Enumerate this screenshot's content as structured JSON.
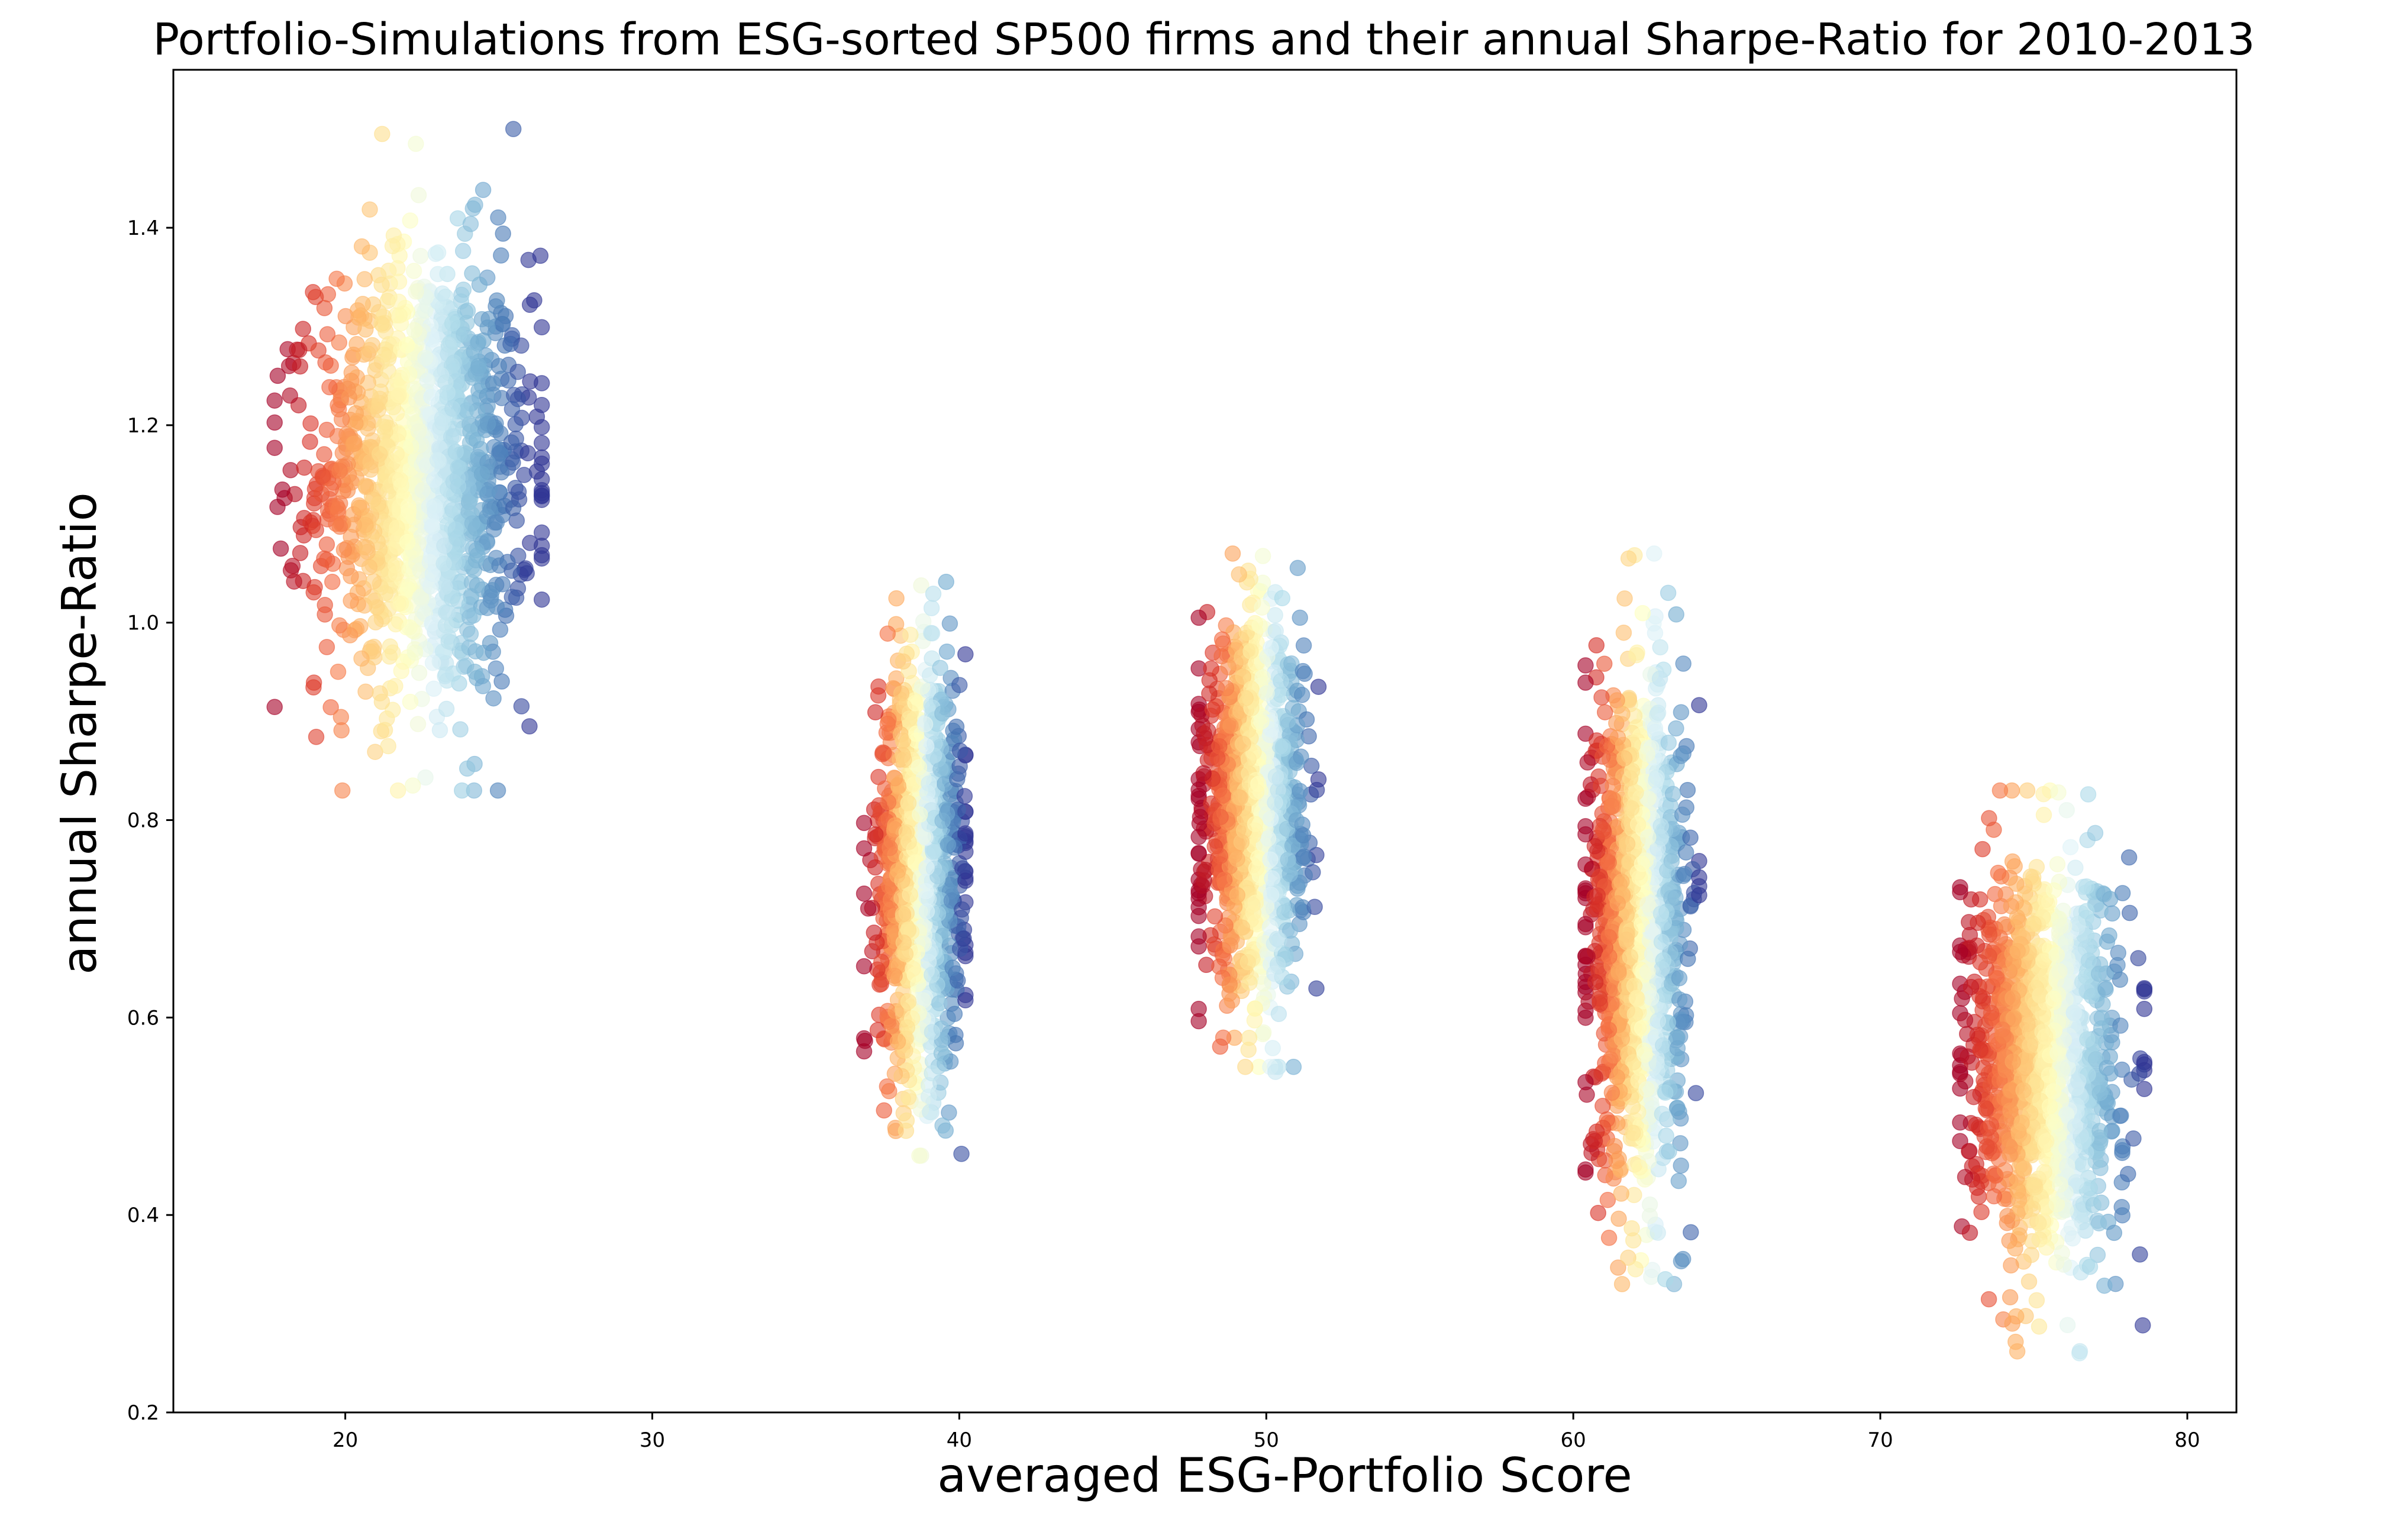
{
  "chart_data": {
    "type": "scatter",
    "title": "Portfolio-Simulations from ESG-sorted SP500 firms and their annual Sharpe-Ratio for 2010-2013",
    "xlabel": "averaged ESG-Portfolio Score",
    "ylabel": "annual Sharpe-Ratio",
    "xlim": [
      14.4,
      81.6
    ],
    "ylim": [
      0.2,
      1.56
    ],
    "xticks": [
      20,
      30,
      40,
      50,
      60,
      70,
      80
    ],
    "yticks": [
      0.2,
      0.4,
      0.6,
      0.8,
      1.0,
      1.2,
      1.4
    ],
    "xtick_labels": [
      "20",
      "30",
      "40",
      "50",
      "60",
      "70",
      "80"
    ],
    "ytick_labels": [
      "0.2",
      "0.4",
      "0.6",
      "0.8",
      "1.0",
      "1.2",
      "1.4"
    ],
    "colormap": "RdYlBu",
    "color_encoding": "x position within each cluster (red = lower ESG score, blue = higher)",
    "marker_alpha": 0.6,
    "grid": false,
    "legend": "none",
    "clusters": [
      {
        "x_center": 22.6,
        "x_range": [
          17.7,
          26.4
        ],
        "y_center": 1.15,
        "y_range": [
          0.83,
          1.5
        ],
        "color_x_range": [
          18.0,
          26.0
        ]
      },
      {
        "x_center": 38.7,
        "x_range": [
          36.9,
          40.2
        ],
        "y_center": 0.75,
        "y_range": [
          0.46,
          1.06
        ],
        "color_x_range": [
          37.0,
          40.2
        ]
      },
      {
        "x_center": 49.6,
        "x_range": [
          47.8,
          51.7
        ],
        "y_center": 0.81,
        "y_range": [
          0.55,
          1.07
        ],
        "color_x_range": [
          47.8,
          51.7
        ]
      },
      {
        "x_center": 62.1,
        "x_range": [
          60.4,
          64.1
        ],
        "y_center": 0.69,
        "y_range": [
          0.33,
          1.07
        ],
        "color_x_range": [
          60.4,
          64.1
        ]
      },
      {
        "x_center": 75.3,
        "x_range": [
          72.6,
          78.6
        ],
        "y_center": 0.56,
        "y_range": [
          0.26,
          0.83
        ],
        "color_x_range": [
          72.6,
          78.6
        ]
      }
    ],
    "outlier_points": [
      {
        "x": 21.2,
        "y": 1.495
      },
      {
        "x": 22.3,
        "y": 1.485
      },
      {
        "x": 17.8,
        "y": 1.25
      },
      {
        "x": 17.7,
        "y": 1.225
      },
      {
        "x": 18.2,
        "y": 1.23
      },
      {
        "x": 17.9,
        "y": 1.075
      },
      {
        "x": 26.4,
        "y": 1.065
      },
      {
        "x": 26.0,
        "y": 0.895
      },
      {
        "x": 23.8,
        "y": 0.83
      },
      {
        "x": 22.2,
        "y": 0.835
      },
      {
        "x": 38.7,
        "y": 0.46
      },
      {
        "x": 36.9,
        "y": 0.652
      },
      {
        "x": 47.8,
        "y": 1.005
      },
      {
        "x": 50.3,
        "y": 0.545
      },
      {
        "x": 51.7,
        "y": 0.935
      },
      {
        "x": 63.0,
        "y": 0.335
      },
      {
        "x": 60.7,
        "y": 0.475
      },
      {
        "x": 64.1,
        "y": 0.742
      },
      {
        "x": 61.8,
        "y": 1.065
      },
      {
        "x": 76.5,
        "y": 0.262
      },
      {
        "x": 78.6,
        "y": 0.555
      },
      {
        "x": 75.8,
        "y": 0.828
      },
      {
        "x": 72.6,
        "y": 0.727
      },
      {
        "x": 74.3,
        "y": 0.29
      }
    ]
  }
}
